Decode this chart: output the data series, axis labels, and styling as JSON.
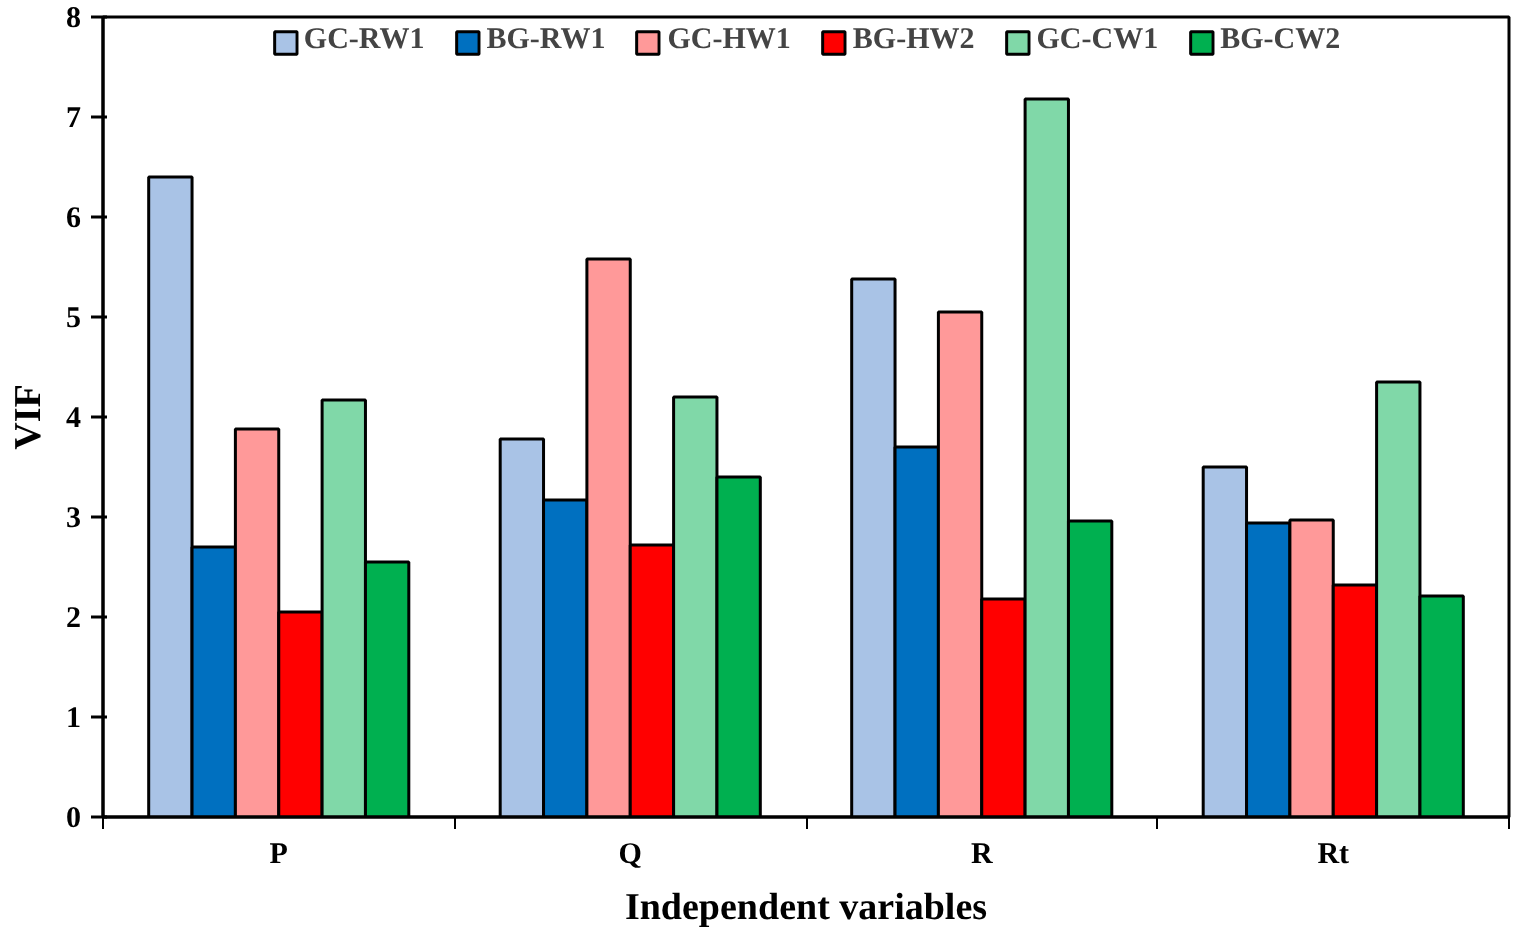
{
  "chart_data": {
    "type": "bar",
    "xlabel": "Independent variables",
    "ylabel": "VIF",
    "categories": [
      "P",
      "Q",
      "R",
      "Rt"
    ],
    "series": [
      {
        "name": "GC-RW1",
        "color": "#a9c3e6",
        "values": [
          6.4,
          3.78,
          5.38,
          3.5
        ]
      },
      {
        "name": "BG-RW1",
        "color": "#0070c0",
        "values": [
          2.7,
          3.17,
          3.7,
          2.94
        ]
      },
      {
        "name": "GC-HW1",
        "color": "#ff9999",
        "values": [
          3.88,
          5.58,
          5.05,
          2.97
        ]
      },
      {
        "name": "BG-HW2",
        "color": "#ff0000",
        "values": [
          2.05,
          2.72,
          2.18,
          2.32
        ]
      },
      {
        "name": "GC-CW1",
        "color": "#80d8a8",
        "values": [
          4.17,
          4.2,
          7.18,
          4.35
        ]
      },
      {
        "name": "BG-CW2",
        "color": "#00b050",
        "values": [
          2.55,
          3.4,
          2.96,
          2.21
        ]
      }
    ],
    "ylim": [
      0,
      8
    ],
    "yticks": [
      0,
      1,
      2,
      3,
      4,
      5,
      6,
      7,
      8
    ],
    "grid": false,
    "legend": "top"
  }
}
